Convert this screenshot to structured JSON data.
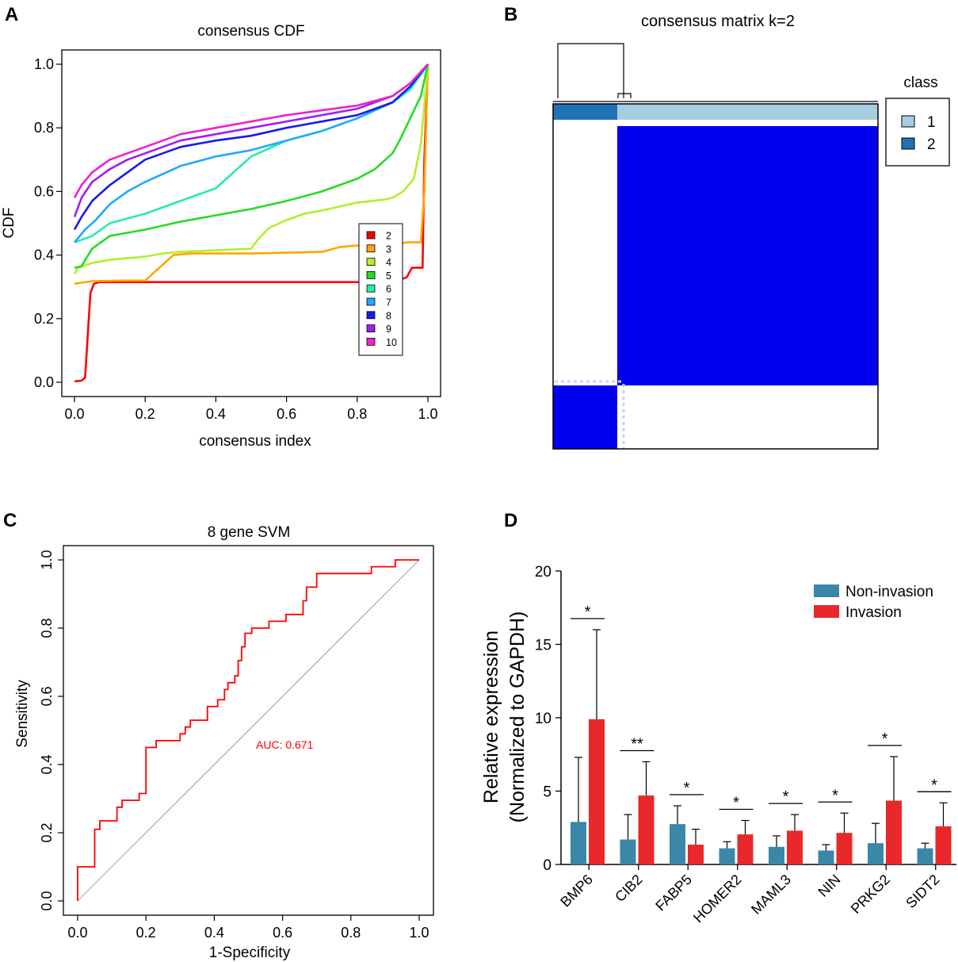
{
  "panels": {
    "a": {
      "letter": "A"
    },
    "b": {
      "letter": "B"
    },
    "c": {
      "letter": "C"
    },
    "d": {
      "letter": "D"
    }
  },
  "colors": {
    "k2": "#ff0000",
    "k3": "#ffa500",
    "k4": "#b4ee2c",
    "k5": "#22dd22",
    "k6": "#22eeaa",
    "k7": "#1eaaff",
    "k8": "#1a1aee",
    "k9": "#a020ee",
    "k10": "#ee22cc",
    "class1": "#a6cee3",
    "class2": "#2171b5",
    "consensus_block": "#0000ee",
    "roc": "#ff0000",
    "diag": "#aaaaaa",
    "noninvasion": "#3a87a8",
    "invasion": "#e8282b"
  },
  "chart_data": [
    {
      "id": "a",
      "type": "line",
      "title": "consensus CDF",
      "xlabel": "consensus index",
      "ylabel": "CDF",
      "xlim": [
        0,
        1
      ],
      "ylim": [
        0,
        1
      ],
      "xticks": [
        "0.0",
        "0.2",
        "0.4",
        "0.6",
        "0.8",
        "1.0"
      ],
      "yticks": [
        "0.0",
        "0.2",
        "0.4",
        "0.6",
        "0.8",
        "1.0"
      ],
      "legend": [
        "2",
        "3",
        "4",
        "5",
        "6",
        "7",
        "8",
        "9",
        "10"
      ],
      "legend_position": "right",
      "series": [
        {
          "name": "2",
          "x": [
            0.0,
            0.02,
            0.03,
            0.045,
            0.055,
            0.07,
            0.2,
            0.5,
            0.9,
            0.94,
            0.955,
            0.97,
            0.985,
            0.99,
            1.0
          ],
          "y": [
            0.003,
            0.005,
            0.015,
            0.28,
            0.31,
            0.315,
            0.315,
            0.315,
            0.315,
            0.33,
            0.36,
            0.36,
            0.36,
            0.7,
            1.0
          ]
        },
        {
          "name": "3",
          "x": [
            0.0,
            0.05,
            0.15,
            0.2,
            0.25,
            0.28,
            0.33,
            0.5,
            0.7,
            0.75,
            0.8,
            0.9,
            0.94,
            0.96,
            0.98,
            0.99,
            1.0
          ],
          "y": [
            0.31,
            0.318,
            0.32,
            0.32,
            0.37,
            0.4,
            0.405,
            0.405,
            0.41,
            0.425,
            0.43,
            0.43,
            0.44,
            0.44,
            0.44,
            0.6,
            1.0
          ]
        },
        {
          "name": "4",
          "x": [
            0.0,
            0.01,
            0.05,
            0.1,
            0.2,
            0.25,
            0.3,
            0.4,
            0.5,
            0.52,
            0.55,
            0.6,
            0.65,
            0.7,
            0.8,
            0.88,
            0.9,
            0.93,
            0.96,
            0.98,
            1.0
          ],
          "y": [
            0.34,
            0.36,
            0.375,
            0.385,
            0.395,
            0.405,
            0.41,
            0.415,
            0.42,
            0.45,
            0.485,
            0.51,
            0.53,
            0.54,
            0.565,
            0.575,
            0.58,
            0.6,
            0.64,
            0.75,
            1.0
          ]
        },
        {
          "name": "5",
          "x": [
            0.0,
            0.02,
            0.05,
            0.1,
            0.2,
            0.3,
            0.4,
            0.5,
            0.6,
            0.7,
            0.8,
            0.85,
            0.9,
            0.92,
            0.95,
            0.98,
            1.0
          ],
          "y": [
            0.36,
            0.365,
            0.42,
            0.46,
            0.48,
            0.505,
            0.525,
            0.545,
            0.57,
            0.6,
            0.64,
            0.67,
            0.72,
            0.76,
            0.83,
            0.9,
            1.0
          ]
        },
        {
          "name": "6",
          "x": [
            0.0,
            0.05,
            0.1,
            0.2,
            0.3,
            0.4,
            0.45,
            0.5,
            0.6,
            0.7,
            0.8,
            0.9,
            0.95,
            1.0
          ],
          "y": [
            0.44,
            0.46,
            0.5,
            0.53,
            0.57,
            0.61,
            0.66,
            0.71,
            0.76,
            0.79,
            0.83,
            0.88,
            0.92,
            1.0
          ]
        },
        {
          "name": "7",
          "x": [
            0.0,
            0.03,
            0.06,
            0.1,
            0.15,
            0.2,
            0.3,
            0.4,
            0.5,
            0.6,
            0.7,
            0.8,
            0.9,
            0.95,
            1.0
          ],
          "y": [
            0.44,
            0.48,
            0.51,
            0.56,
            0.6,
            0.63,
            0.68,
            0.71,
            0.73,
            0.76,
            0.79,
            0.83,
            0.88,
            0.93,
            1.0
          ]
        },
        {
          "name": "8",
          "x": [
            0.0,
            0.02,
            0.05,
            0.1,
            0.15,
            0.2,
            0.3,
            0.4,
            0.5,
            0.6,
            0.7,
            0.8,
            0.9,
            0.95,
            1.0
          ],
          "y": [
            0.48,
            0.52,
            0.57,
            0.62,
            0.66,
            0.7,
            0.74,
            0.76,
            0.775,
            0.8,
            0.82,
            0.84,
            0.88,
            0.93,
            1.0
          ]
        },
        {
          "name": "9",
          "x": [
            0.0,
            0.02,
            0.05,
            0.1,
            0.15,
            0.2,
            0.3,
            0.4,
            0.5,
            0.6,
            0.7,
            0.8,
            0.9,
            0.95,
            1.0
          ],
          "y": [
            0.52,
            0.58,
            0.63,
            0.67,
            0.7,
            0.72,
            0.76,
            0.78,
            0.8,
            0.82,
            0.84,
            0.86,
            0.9,
            0.94,
            1.0
          ]
        },
        {
          "name": "10",
          "x": [
            0.0,
            0.02,
            0.05,
            0.1,
            0.15,
            0.2,
            0.3,
            0.4,
            0.5,
            0.6,
            0.7,
            0.8,
            0.9,
            0.95,
            1.0
          ],
          "y": [
            0.58,
            0.62,
            0.66,
            0.7,
            0.72,
            0.74,
            0.78,
            0.8,
            0.82,
            0.84,
            0.855,
            0.87,
            0.9,
            0.94,
            1.0
          ]
        }
      ]
    },
    {
      "id": "b",
      "type": "heatmap",
      "title": "consensus matrix k=2",
      "legend_title": "class",
      "legend": [
        "1",
        "2"
      ],
      "classes": [
        {
          "name": "2",
          "fraction": 0.2
        },
        {
          "name": "1",
          "fraction": 0.8
        }
      ]
    },
    {
      "id": "c",
      "type": "line",
      "title": "8 gene SVM",
      "xlabel": "1-Specificity",
      "ylabel": "Sensitivity",
      "xlim": [
        0,
        1
      ],
      "ylim": [
        0,
        1
      ],
      "xticks": [
        "0.0",
        "0.2",
        "0.4",
        "0.6",
        "0.8",
        "1.0"
      ],
      "yticks": [
        "0.0",
        "0.2",
        "0.4",
        "0.6",
        "0.8",
        "1.0"
      ],
      "annotation": "AUC: 0.671",
      "roc_x": [
        0,
        0,
        0.05,
        0.05,
        0.065,
        0.065,
        0.115,
        0.115,
        0.13,
        0.13,
        0.18,
        0.18,
        0.2,
        0.2,
        0.23,
        0.23,
        0.3,
        0.3,
        0.315,
        0.315,
        0.33,
        0.33,
        0.38,
        0.38,
        0.41,
        0.41,
        0.43,
        0.43,
        0.44,
        0.44,
        0.46,
        0.46,
        0.47,
        0.47,
        0.48,
        0.48,
        0.49,
        0.49,
        0.51,
        0.51,
        0.56,
        0.56,
        0.61,
        0.61,
        0.66,
        0.66,
        0.67,
        0.67,
        0.7,
        0.7,
        0.86,
        0.86,
        0.93,
        0.93,
        1.0
      ],
      "roc_y": [
        0,
        0.1,
        0.1,
        0.21,
        0.21,
        0.235,
        0.235,
        0.275,
        0.275,
        0.295,
        0.295,
        0.315,
        0.315,
        0.45,
        0.45,
        0.47,
        0.47,
        0.49,
        0.49,
        0.51,
        0.51,
        0.53,
        0.53,
        0.57,
        0.57,
        0.59,
        0.59,
        0.62,
        0.62,
        0.64,
        0.64,
        0.66,
        0.66,
        0.705,
        0.705,
        0.745,
        0.745,
        0.785,
        0.785,
        0.8,
        0.8,
        0.82,
        0.82,
        0.84,
        0.84,
        0.88,
        0.88,
        0.92,
        0.92,
        0.96,
        0.96,
        0.98,
        0.98,
        1.0,
        1.0
      ]
    },
    {
      "id": "d",
      "type": "bar",
      "ylabel_line1": "Relative expression",
      "ylabel_line2": "(Normalized to GAPDH)",
      "ylim": [
        0,
        20
      ],
      "yticks": [
        "0",
        "5",
        "10",
        "15",
        "20"
      ],
      "categories": [
        "BMP6",
        "CIB2",
        "FABP5",
        "HOMER2",
        "MAML3",
        "NIN",
        "PRKG2",
        "SIDT2"
      ],
      "legend_position": "top-right",
      "significance": [
        "*",
        "**",
        "*",
        "*",
        "*",
        "*",
        "*",
        "*"
      ],
      "series": [
        {
          "name": "Non-invasion",
          "values": [
            2.9,
            1.7,
            2.75,
            1.1,
            1.2,
            0.95,
            1.45,
            1.1
          ],
          "errors": [
            4.4,
            1.7,
            1.25,
            0.45,
            0.75,
            0.4,
            1.35,
            0.35
          ]
        },
        {
          "name": "Invasion",
          "values": [
            9.9,
            4.7,
            1.35,
            2.05,
            2.3,
            2.15,
            4.35,
            2.6
          ],
          "errors": [
            6.1,
            2.3,
            1.05,
            0.95,
            1.1,
            1.35,
            3.0,
            1.6
          ]
        }
      ]
    }
  ]
}
